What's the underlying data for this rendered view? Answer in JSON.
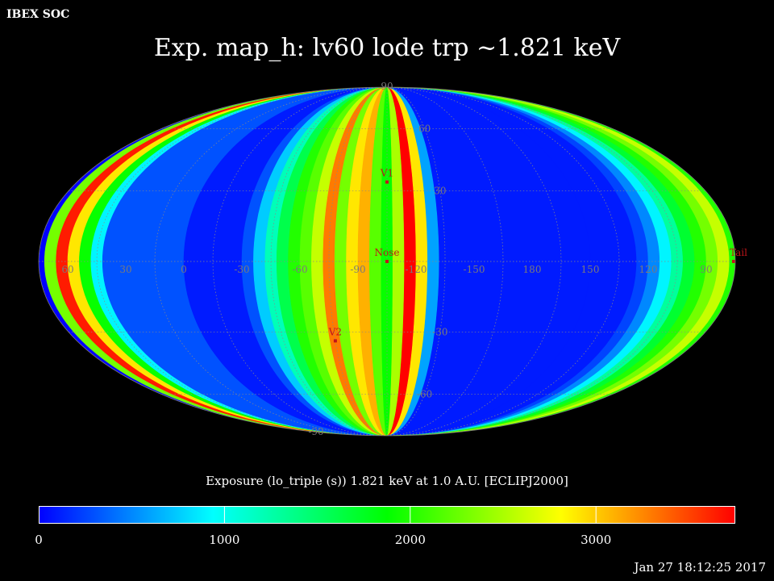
{
  "header": {
    "org": "IBEX SOC",
    "title": "Exp.   map_h: lv60 lode trp ~1.821 keV",
    "timestamp": "Jan 27 18:12:25 2017"
  },
  "caption": "Exposure (lo_triple (s))  1.821 keV at 1.0 A.U. [ECLIPJ2000]",
  "map": {
    "projection": "mollweide",
    "lat_labels": [
      {
        "text": "90",
        "lat": 90
      },
      {
        "text": "60",
        "lat": 60
      },
      {
        "text": "30",
        "lat": 30
      },
      {
        "text": "-30",
        "lat": -30
      },
      {
        "text": "-60",
        "lat": -60
      },
      {
        "text": "-90",
        "lat": -90
      }
    ],
    "lon_labels": [
      {
        "text": "60",
        "lon": 60
      },
      {
        "text": "30",
        "lon": 30
      },
      {
        "text": "0",
        "lon": 0
      },
      {
        "text": "-30",
        "lon": -30
      },
      {
        "text": "-60",
        "lon": -60
      },
      {
        "text": "-90",
        "lon": -90
      },
      {
        "text": "-120",
        "lon": -120
      },
      {
        "text": "-150",
        "lon": -150
      },
      {
        "text": "180",
        "lon": 180
      },
      {
        "text": "150",
        "lon": 150
      },
      {
        "text": "120",
        "lon": 120
      },
      {
        "text": "90",
        "lon": 90
      }
    ],
    "markers": [
      {
        "label": "V1",
        "lon": -105,
        "lat": 34
      },
      {
        "label": "Nose",
        "lon": -105,
        "lat": 0
      },
      {
        "label": "V2",
        "lon": -75,
        "lat": -34
      },
      {
        "label": "Tail",
        "lon": 75,
        "lat": 0
      }
    ],
    "colorscale": [
      "#0000ff",
      "#00ffff",
      "#00ff00",
      "#ffff00",
      "#ff0000"
    ],
    "exposure_bands": [
      {
        "lon": 72,
        "value": 2300
      },
      {
        "lon": 66,
        "value": 3650
      },
      {
        "lon": 60,
        "value": 2900
      },
      {
        "lon": 54,
        "value": 1900
      },
      {
        "lon": 48,
        "value": 900
      },
      {
        "lon": 42,
        "value": 300
      },
      {
        "lon": 0,
        "value": 100
      },
      {
        "lon": -30,
        "value": 300
      },
      {
        "lon": -36,
        "value": 750
      },
      {
        "lon": -42,
        "value": 1200
      },
      {
        "lon": -48,
        "value": 1600
      },
      {
        "lon": -54,
        "value": 2000
      },
      {
        "lon": -60,
        "value": 2200
      },
      {
        "lon": -66,
        "value": 2600
      },
      {
        "lon": -72,
        "value": 3300
      },
      {
        "lon": -78,
        "value": 2300
      },
      {
        "lon": -84,
        "value": 2900
      },
      {
        "lon": -90,
        "value": 3100
      },
      {
        "lon": -96,
        "value": 2200
      },
      {
        "lon": -102,
        "value": 1900
      },
      {
        "lon": -108,
        "value": 2500
      },
      {
        "lon": -114,
        "value": 3800
      },
      {
        "lon": -120,
        "value": 2900
      },
      {
        "lon": -126,
        "value": 600
      },
      {
        "lon": -132,
        "value": 100
      },
      {
        "lon": 150,
        "value": 100
      },
      {
        "lon": 126,
        "value": 250
      },
      {
        "lon": 120,
        "value": 500
      },
      {
        "lon": 114,
        "value": 900
      },
      {
        "lon": 108,
        "value": 1300
      },
      {
        "lon": 102,
        "value": 1700
      },
      {
        "lon": 96,
        "value": 2000
      },
      {
        "lon": 90,
        "value": 2300
      },
      {
        "lon": 84,
        "value": 2600
      },
      {
        "lon": 78,
        "value": 2000
      }
    ]
  },
  "colorbar": {
    "min": 0,
    "max": 3750,
    "ticks": [
      {
        "text": "0",
        "value": 0
      },
      {
        "text": "1000",
        "value": 1000
      },
      {
        "text": "2000",
        "value": 2000
      },
      {
        "text": "3000",
        "value": 3000
      }
    ]
  }
}
